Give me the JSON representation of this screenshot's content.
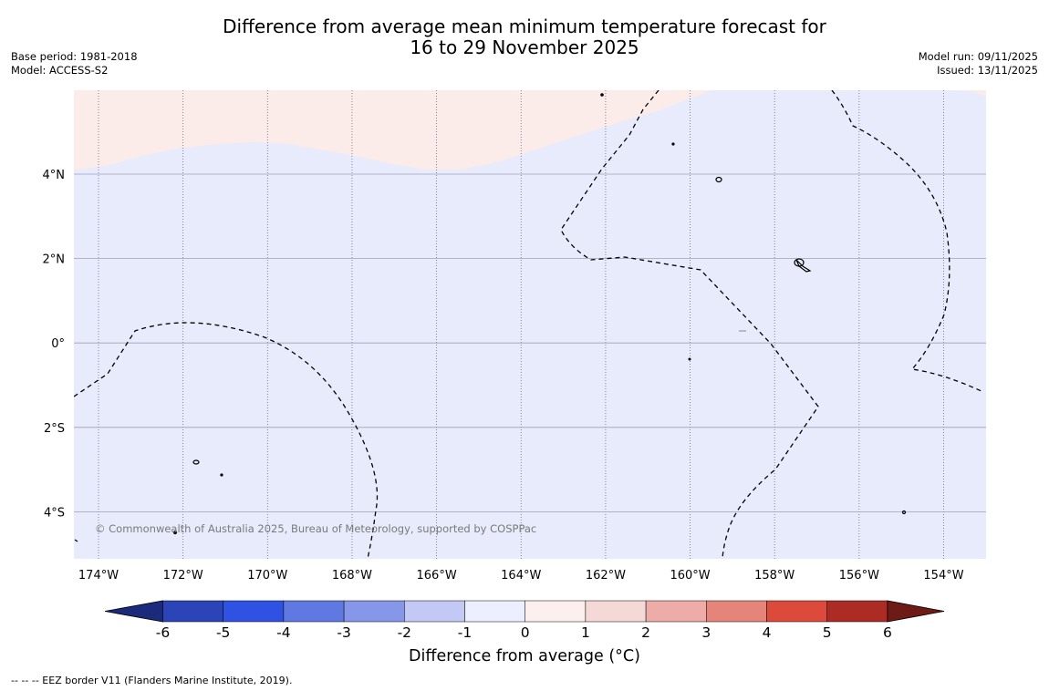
{
  "title": {
    "line1": "Difference from average mean minimum temperature forecast for",
    "line2": "16 to 29 November 2025"
  },
  "meta_left": {
    "base_period": "Base period: 1981-2018",
    "model": "Model: ACCESS-S2"
  },
  "meta_right": {
    "model_run": "Model run: 09/11/2025",
    "issued": "Issued: 13/11/2025"
  },
  "map": {
    "lon_labels": [
      "174°W",
      "172°W",
      "170°W",
      "168°W",
      "166°W",
      "164°W",
      "162°W",
      "160°W",
      "158°W",
      "156°W",
      "154°W"
    ],
    "lat_labels": [
      "4°N",
      "2°N",
      "0°",
      "2°S",
      "4°S"
    ],
    "copyright": "© Commonwealth of Australia 2025, Bureau of Meteorology, supported by COSPPac",
    "fill_colors": {
      "background_anomaly_minus_1_to_0": "#e8ebfb",
      "anomaly_0_to_1": "#fbebe9"
    }
  },
  "colorbar": {
    "title": "Difference from average (°C)",
    "tick_labels": [
      "-6",
      "-5",
      "-4",
      "-3",
      "-2",
      "-1",
      "0",
      "1",
      "2",
      "3",
      "4",
      "5",
      "6"
    ],
    "colors": [
      "#1b2a7a",
      "#2b44b8",
      "#2f52e2",
      "#5f78e2",
      "#8696e9",
      "#c3c9f5",
      "#ecefff",
      "#fdefed",
      "#f4d9d6",
      "#eeaca8",
      "#e58479",
      "#dc4a3c",
      "#ac2b24",
      "#6e1a16"
    ]
  },
  "footnote": "--  --  -- EEZ border V11 (Flanders Marine Institute, 2019)."
}
